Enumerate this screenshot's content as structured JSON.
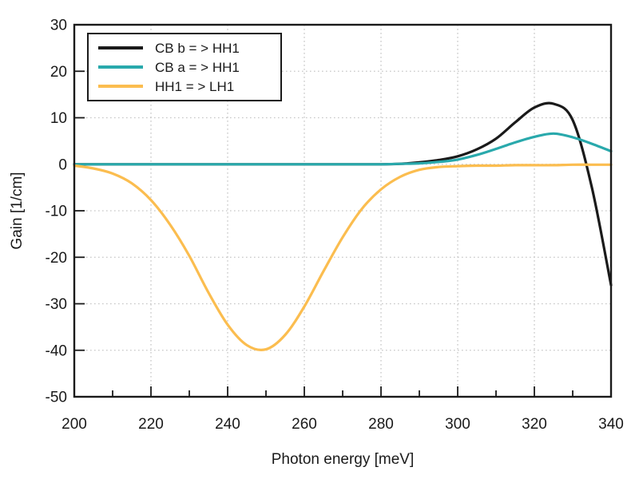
{
  "figure": {
    "background": "#ffffff",
    "axis_color": "#1a1a1a",
    "grid_color": "#c6c6c6"
  },
  "chart_data": {
    "type": "line",
    "title": "",
    "xlabel": "Photon energy [meV]",
    "ylabel": "Gain [1/cm]",
    "xlim": [
      200,
      340
    ],
    "ylim": [
      -50,
      30
    ],
    "x_major_ticks": [
      200,
      220,
      240,
      260,
      280,
      300,
      320,
      340
    ],
    "x_minor_ticks": [
      210,
      230,
      250,
      270,
      290,
      310,
      330
    ],
    "y_major_ticks": [
      30,
      20,
      10,
      0,
      -10,
      -20,
      -30,
      -40,
      -50
    ],
    "grid": true,
    "legend_position": "upper-left",
    "x": [
      200,
      205,
      210,
      215,
      220,
      225,
      230,
      235,
      240,
      245,
      250,
      255,
      260,
      265,
      270,
      275,
      280,
      285,
      290,
      295,
      300,
      305,
      310,
      315,
      320,
      325,
      330,
      335,
      340
    ],
    "series": [
      {
        "name": "CB b = > HH1",
        "color": "#1a1a1a",
        "values": [
          0,
          0,
          0,
          0,
          0,
          0,
          0,
          0,
          0,
          0,
          0,
          0,
          0,
          0,
          0,
          0,
          0,
          0.1,
          0.4,
          0.9,
          1.7,
          3.2,
          5.5,
          9.0,
          12.2,
          13.0,
          9.5,
          -5.0,
          -26.0
        ]
      },
      {
        "name": "CB a = > HH1",
        "color": "#29a9ac",
        "values": [
          0,
          0,
          0,
          0,
          0,
          0,
          0,
          0,
          0,
          0,
          0,
          0,
          0,
          0,
          0,
          0,
          0,
          0.1,
          0.2,
          0.5,
          1.0,
          2.0,
          3.3,
          4.7,
          5.9,
          6.6,
          5.8,
          4.4,
          2.8
        ]
      },
      {
        "name": "HH1 = > LH1",
        "color": "#fbbd4f",
        "values": [
          -0.3,
          -0.9,
          -2.0,
          -4.1,
          -7.7,
          -13.0,
          -19.7,
          -27.6,
          -34.5,
          -38.9,
          -39.8,
          -36.7,
          -30.6,
          -23.0,
          -15.7,
          -9.6,
          -5.4,
          -2.7,
          -1.2,
          -0.6,
          -0.4,
          -0.3,
          -0.3,
          -0.2,
          -0.2,
          -0.2,
          -0.1,
          -0.1,
          -0.1
        ]
      }
    ]
  }
}
